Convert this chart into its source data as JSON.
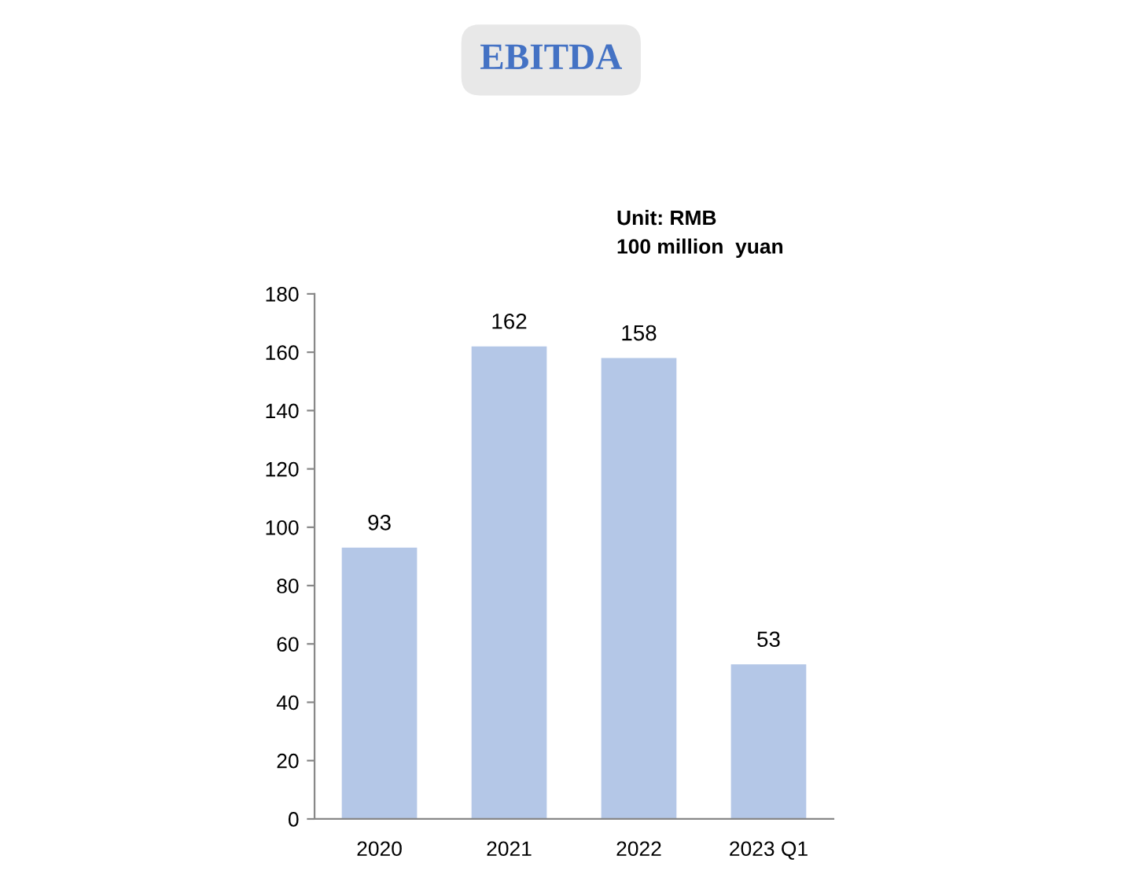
{
  "chart_data": {
    "type": "bar",
    "title": "EBITDA",
    "annotations": [
      "Unit: RMB",
      "100 million  yuan"
    ],
    "categories": [
      "2020",
      "2021",
      "2022",
      "2023 Q1"
    ],
    "values": [
      93,
      162,
      158,
      53
    ],
    "color": "#b4c7e7",
    "ylim": [
      0,
      180
    ],
    "yticks": [
      0,
      20,
      40,
      60,
      80,
      100,
      120,
      140,
      160,
      180
    ],
    "data_labels": true,
    "grid": false,
    "legend": false
  }
}
